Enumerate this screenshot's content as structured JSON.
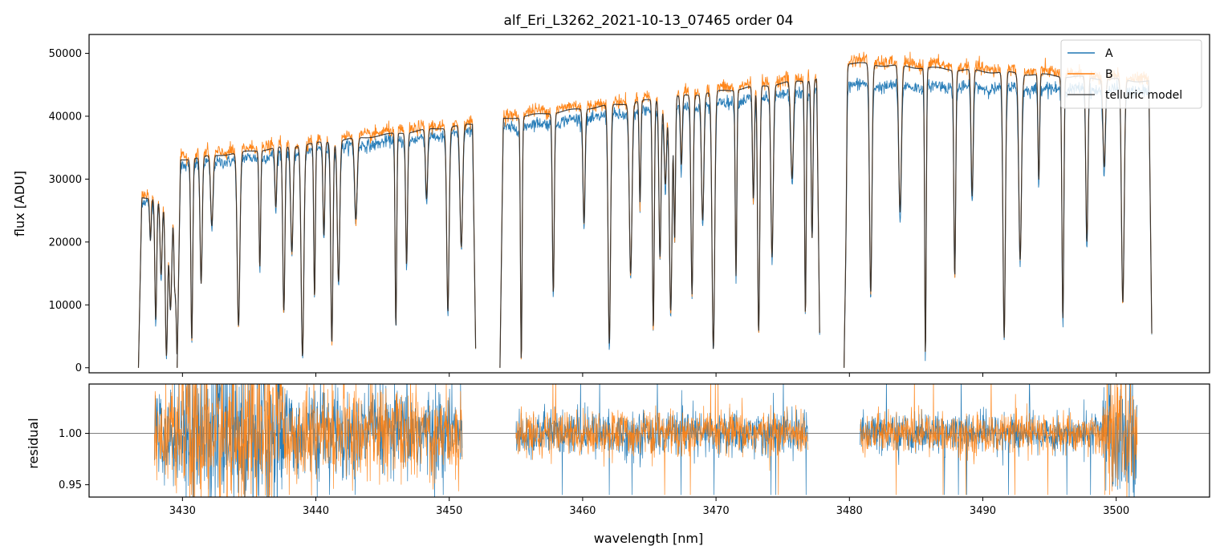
{
  "chart_data": [
    {
      "type": "line",
      "title": "alf_Eri_L3262_2021-10-13_07465  order 04",
      "xlabel": "",
      "ylabel": "flux [ADU]",
      "xlim": [
        3423,
        3507
      ],
      "ylim": [
        -800,
        53000
      ],
      "x_ticks": [
        3430,
        3440,
        3450,
        3460,
        3470,
        3480,
        3490,
        3500
      ],
      "y_ticks": [
        0,
        10000,
        20000,
        30000,
        40000,
        50000
      ],
      "y_tick_labels": [
        "0",
        "10000",
        "20000",
        "30000",
        "40000",
        "50000"
      ],
      "legend_placement": "top-right",
      "grid": false,
      "segments": [
        {
          "x_start": 3426.7,
          "x_end": 3429.6,
          "A": 26500,
          "B": 27500,
          "model": 27000
        },
        {
          "x_start": 3429.6,
          "x_end": 3452.0,
          "A_start": 32000,
          "A_end": 37500,
          "B_start": 33500,
          "B_end": 39200,
          "model_start": 33000,
          "model_end": 38800
        },
        {
          "x_start": 3453.8,
          "x_end": 3477.8,
          "A_start": 38000,
          "A_end": 44000,
          "B_start": 40000,
          "B_end": 46500,
          "model_start": 39500,
          "model_end": 46000
        },
        {
          "x_start": 3479.6,
          "x_end": 3502.7,
          "A_start": 45000,
          "A_end": 44000,
          "B_start": 49000,
          "B_end": 46000,
          "model_start": 48500,
          "model_end": 45500
        }
      ],
      "absorption_lines_nm": [
        3427.6,
        3428.0,
        3428.4,
        3428.8,
        3429.1,
        3429.4,
        3430.7,
        3431.4,
        3432.2,
        3434.2,
        3435.8,
        3437.0,
        3437.6,
        3438.2,
        3439.0,
        3439.9,
        3440.6,
        3441.2,
        3441.7,
        3443.0,
        3446.0,
        3446.8,
        3448.3,
        3449.9,
        3450.9,
        3455.4,
        3457.8,
        3460.1,
        3462.0,
        3463.6,
        3464.3,
        3465.3,
        3465.8,
        3466.2,
        3466.6,
        3466.9,
        3467.4,
        3468.2,
        3469.0,
        3469.8,
        3471.5,
        3472.8,
        3473.2,
        3474.2,
        3475.7,
        3476.7,
        3477.2,
        3479.7,
        3481.6,
        3483.8,
        3485.7,
        3487.9,
        3489.2,
        3491.6,
        3492.8,
        3494.2,
        3496.0,
        3497.8,
        3499.1,
        3500.5
      ],
      "series": [
        {
          "name": "A",
          "color": "#1f77b4"
        },
        {
          "name": "B",
          "color": "#ff7f0e"
        },
        {
          "name": "telluric model",
          "color": "#2b2b2b"
        }
      ]
    },
    {
      "type": "line",
      "title": "",
      "xlabel": "wavelength [nm]",
      "ylabel": "residual",
      "xlim": [
        3423,
        3507
      ],
      "ylim": [
        0.938,
        1.048
      ],
      "x_ticks": [
        3430,
        3440,
        3450,
        3460,
        3470,
        3480,
        3490,
        3500
      ],
      "x_tick_labels": [
        "3430",
        "3440",
        "3450",
        "3460",
        "3470",
        "3480",
        "3490",
        "3500"
      ],
      "y_ticks": [
        0.95,
        1.0
      ],
      "y_tick_labels": [
        "0.95",
        "1.00"
      ],
      "reference_line": 1.0,
      "grid": false,
      "segments": [
        {
          "x_start": 3427.9,
          "x_end": 3451.0,
          "scatter": 0.022
        },
        {
          "x_start": 3455.0,
          "x_end": 3476.9,
          "scatter": 0.011
        },
        {
          "x_start": 3480.8,
          "x_end": 3501.6,
          "scatter": 0.01
        }
      ],
      "series": [
        {
          "name": "A",
          "color": "#1f77b4"
        },
        {
          "name": "B",
          "color": "#ff7f0e"
        }
      ]
    }
  ],
  "legend": {
    "items": [
      {
        "label": "A",
        "color": "#1f77b4"
      },
      {
        "label": "B",
        "color": "#ff7f0e"
      },
      {
        "label": "telluric model",
        "color": "#555555"
      }
    ]
  }
}
